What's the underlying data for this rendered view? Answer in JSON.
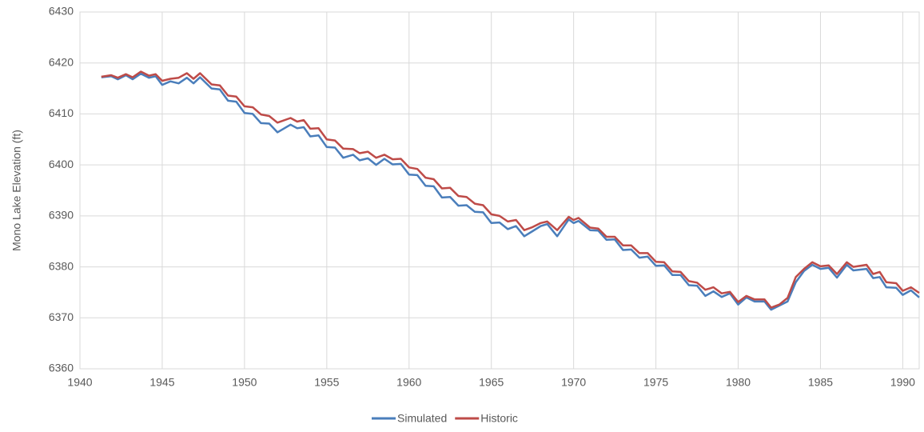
{
  "chart_data": {
    "type": "line",
    "y_label": "Mono Lake Elevation (ft)",
    "x": [
      1941.3,
      1941.9,
      1942.3,
      1942.8,
      1943.2,
      1943.7,
      1944.2,
      1944.6,
      1945.0,
      1945.5,
      1946.0,
      1946.5,
      1946.9,
      1947.3,
      1948.0,
      1948.5,
      1949.0,
      1949.5,
      1950.0,
      1950.5,
      1951.0,
      1951.5,
      1952.0,
      1952.8,
      1953.2,
      1953.6,
      1954.0,
      1954.5,
      1955.0,
      1955.5,
      1956.0,
      1956.6,
      1957.0,
      1957.5,
      1958.0,
      1958.5,
      1959.0,
      1959.5,
      1960.0,
      1960.5,
      1961.0,
      1961.5,
      1962.0,
      1962.5,
      1963.0,
      1963.5,
      1964.0,
      1964.5,
      1965.0,
      1965.5,
      1966.0,
      1966.5,
      1967.0,
      1967.5,
      1968.0,
      1968.4,
      1969.0,
      1969.7,
      1970.0,
      1970.3,
      1971.0,
      1971.5,
      1972.0,
      1972.5,
      1973.0,
      1973.5,
      1974.0,
      1974.5,
      1975.0,
      1975.5,
      1976.0,
      1976.5,
      1977.0,
      1977.5,
      1978.0,
      1978.5,
      1979.0,
      1979.5,
      1980.0,
      1980.5,
      1981.0,
      1981.6,
      1982.0,
      1982.5,
      1983.0,
      1983.5,
      1984.0,
      1984.5,
      1985.0,
      1985.5,
      1986.0,
      1986.6,
      1987.0,
      1987.8,
      1988.2,
      1988.6,
      1989.0,
      1989.6,
      1990.0,
      1990.5,
      1991.0
    ],
    "series": [
      {
        "name": "Simulated",
        "color": "#4a7ebb",
        "values": [
          6417.2,
          6417.4,
          6416.8,
          6417.6,
          6416.8,
          6417.9,
          6417.1,
          6417.4,
          6415.7,
          6416.4,
          6416.0,
          6417.1,
          6416.0,
          6417.2,
          6415.0,
          6414.8,
          6412.6,
          6412.4,
          6410.2,
          6410.0,
          6408.2,
          6408.1,
          6406.4,
          6407.9,
          6407.2,
          6407.4,
          6405.6,
          6405.8,
          6403.5,
          6403.4,
          6401.4,
          6402.0,
          6400.9,
          6401.3,
          6400.0,
          6401.2,
          6400.1,
          6400.2,
          6398.1,
          6398.0,
          6395.9,
          6395.8,
          6393.6,
          6393.7,
          6392.0,
          6392.1,
          6390.8,
          6390.7,
          6388.6,
          6388.7,
          6387.4,
          6388.0,
          6386.0,
          6387.0,
          6388.0,
          6388.4,
          6386.0,
          6389.3,
          6388.6,
          6389.0,
          6387.2,
          6387.1,
          6385.3,
          6385.4,
          6383.3,
          6383.4,
          6381.8,
          6382.0,
          6380.2,
          6380.3,
          6378.4,
          6378.4,
          6376.4,
          6376.3,
          6374.3,
          6375.2,
          6374.1,
          6374.8,
          6372.6,
          6374.0,
          6373.2,
          6373.2,
          6371.6,
          6372.4,
          6373.2,
          6377.0,
          6379.2,
          6380.4,
          6379.6,
          6379.8,
          6377.9,
          6380.4,
          6379.3,
          6379.6,
          6377.8,
          6378.0,
          6376.0,
          6375.9,
          6374.5,
          6375.4,
          6374.0
        ]
      },
      {
        "name": "Historic",
        "color": "#be4b48",
        "values": [
          6417.3,
          6417.6,
          6417.1,
          6417.8,
          6417.2,
          6418.3,
          6417.5,
          6417.8,
          6416.5,
          6416.9,
          6417.1,
          6418.0,
          6416.9,
          6418.0,
          6415.8,
          6415.6,
          6413.6,
          6413.4,
          6411.5,
          6411.3,
          6409.9,
          6409.6,
          6408.3,
          6409.2,
          6408.5,
          6408.8,
          6407.1,
          6407.2,
          6405.0,
          6404.8,
          6403.2,
          6403.1,
          6402.3,
          6402.6,
          6401.4,
          6402.0,
          6401.1,
          6401.2,
          6399.5,
          6399.2,
          6397.5,
          6397.2,
          6395.4,
          6395.5,
          6393.9,
          6393.7,
          6392.4,
          6392.1,
          6390.3,
          6390.0,
          6388.9,
          6389.2,
          6387.2,
          6387.8,
          6388.6,
          6388.9,
          6387.2,
          6389.8,
          6389.2,
          6389.6,
          6387.7,
          6387.5,
          6385.9,
          6385.9,
          6384.2,
          6384.2,
          6382.7,
          6382.7,
          6381.0,
          6380.9,
          6379.1,
          6379.0,
          6377.2,
          6376.9,
          6375.5,
          6376.0,
          6374.8,
          6375.1,
          6373.1,
          6374.3,
          6373.6,
          6373.6,
          6372.0,
          6372.6,
          6373.9,
          6378.0,
          6379.6,
          6380.9,
          6380.1,
          6380.3,
          6378.6,
          6380.9,
          6380.0,
          6380.4,
          6378.6,
          6379.0,
          6377.0,
          6376.8,
          6375.3,
          6376.0,
          6374.9
        ]
      }
    ],
    "xlim": [
      1940,
      1991
    ],
    "xticks": [
      1940,
      1945,
      1950,
      1955,
      1960,
      1965,
      1970,
      1975,
      1980,
      1985,
      1990
    ],
    "ylim": [
      6360,
      6430
    ],
    "yticks": [
      6360,
      6370,
      6380,
      6390,
      6400,
      6410,
      6420,
      6430
    ],
    "grid": true,
    "legend": "bottom"
  }
}
